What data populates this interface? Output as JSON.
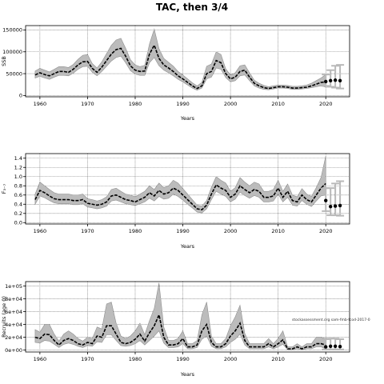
{
  "title": "TAC, then 3/4",
  "watermark": "stockassessment.org  sam-fmb-fcod-2017-0",
  "colors": {
    "band": "#bcbcbc",
    "band_edge": "#8f8f8f",
    "line": "#000000",
    "dotted": "#3a3a3a",
    "forecast": "#b9b9b9",
    "points": "#000000"
  },
  "chart_data": [
    {
      "type": "line",
      "ylabel": "SSB",
      "xlabel": "Years",
      "xlim": [
        1957,
        2025
      ],
      "xticks": [
        1960,
        1970,
        1980,
        1990,
        2000,
        2010,
        2020
      ],
      "ylim": [
        -3000,
        160000
      ],
      "yticks": [
        0,
        50000,
        100000,
        150000
      ],
      "ytick_labels": [
        "0",
        "50000",
        "100000",
        "150000"
      ],
      "grid": true,
      "series": [
        {
          "x": [
            1959,
            1960,
            1961,
            1962,
            1963,
            1964,
            1965,
            1966,
            1967,
            1968,
            1969,
            1970,
            1971,
            1972,
            1973,
            1974,
            1975,
            1976,
            1977,
            1978,
            1979,
            1980,
            1981,
            1982,
            1983,
            1984,
            1985,
            1986,
            1987,
            1988,
            1989,
            1990,
            1991,
            1992,
            1993,
            1994,
            1995,
            1996,
            1997,
            1998,
            1999,
            2000,
            2001,
            2002,
            2003,
            2004,
            2005,
            2006,
            2007,
            2008,
            2009,
            2010,
            2011,
            2012,
            2013,
            2014,
            2015,
            2016,
            2017,
            2018,
            2019,
            2020
          ],
          "estimate": [
            47000,
            52000,
            48000,
            45000,
            50000,
            55000,
            55000,
            53000,
            60000,
            70000,
            77000,
            78000,
            62000,
            53000,
            65000,
            80000,
            95000,
            105000,
            108000,
            90000,
            68000,
            58000,
            55000,
            56000,
            95000,
            115000,
            85000,
            70000,
            63000,
            55000,
            45000,
            38000,
            30000,
            22000,
            16000,
            22000,
            50000,
            55000,
            80000,
            75000,
            50000,
            38000,
            42000,
            55000,
            58000,
            42000,
            28000,
            22000,
            18000,
            16000,
            18000,
            20000,
            20000,
            19000,
            17000,
            17000,
            18000,
            19000,
            22000,
            26000,
            30000,
            31000
          ],
          "lower": [
            40000,
            44000,
            40000,
            37000,
            42000,
            46000,
            46000,
            45000,
            51000,
            60000,
            66000,
            67000,
            53000,
            45000,
            55000,
            67000,
            79000,
            87000,
            90000,
            75000,
            57000,
            49000,
            46000,
            46000,
            75000,
            87000,
            68000,
            58000,
            52000,
            45000,
            37000,
            31000,
            24000,
            17000,
            12000,
            17000,
            38000,
            42000,
            63000,
            60000,
            41000,
            31000,
            34000,
            45000,
            47000,
            34000,
            22000,
            17000,
            14000,
            13000,
            15000,
            17000,
            17000,
            16000,
            14000,
            14000,
            15000,
            16000,
            18000,
            20000,
            22000,
            19000
          ],
          "upper": [
            56000,
            62000,
            58000,
            54000,
            60000,
            66000,
            66000,
            64000,
            71000,
            83000,
            92000,
            94000,
            73000,
            63000,
            77000,
            96000,
            115000,
            127000,
            131000,
            108000,
            82000,
            70000,
            66000,
            69000,
            118000,
            152000,
            107000,
            85000,
            76000,
            67000,
            55000,
            47000,
            38000,
            29000,
            22000,
            30000,
            67000,
            72000,
            100000,
            94000,
            61000,
            47000,
            52000,
            68000,
            70000,
            52000,
            35000,
            28000,
            23000,
            20000,
            22000,
            24000,
            24000,
            23000,
            21000,
            21000,
            22000,
            24000,
            28000,
            34000,
            40000,
            48000
          ]
        }
      ],
      "forecast": {
        "x": [
          2020,
          2021,
          2022,
          2023
        ],
        "median": [
          32000,
          34000,
          35000,
          34000
        ],
        "lower": [
          22000,
          20000,
          18000,
          16000
        ],
        "upper": [
          48000,
          58000,
          68000,
          70000
        ]
      }
    },
    {
      "type": "line",
      "ylabel": "F₃₋₇",
      "xlabel": "Years",
      "xlim": [
        1957,
        2025
      ],
      "xticks": [
        1960,
        1970,
        1980,
        1990,
        2000,
        2010,
        2020
      ],
      "ylim": [
        -0.03,
        1.5
      ],
      "yticks": [
        0.0,
        0.2,
        0.4,
        0.6,
        0.8,
        1.0,
        1.2,
        1.4
      ],
      "ytick_labels": [
        "0.0",
        "0.2",
        "0.4",
        "0.6",
        "0.8",
        "1.0",
        "1.2",
        "1.4"
      ],
      "grid": true,
      "series": [
        {
          "x": [
            1959,
            1960,
            1961,
            1962,
            1963,
            1964,
            1965,
            1966,
            1967,
            1968,
            1969,
            1970,
            1971,
            1972,
            1973,
            1974,
            1975,
            1976,
            1977,
            1978,
            1979,
            1980,
            1981,
            1982,
            1983,
            1984,
            1985,
            1986,
            1987,
            1988,
            1989,
            1990,
            1991,
            1992,
            1993,
            1994,
            1995,
            1996,
            1997,
            1998,
            1999,
            2000,
            2001,
            2002,
            2003,
            2004,
            2005,
            2006,
            2007,
            2008,
            2009,
            2010,
            2011,
            2012,
            2013,
            2014,
            2015,
            2016,
            2017,
            2018,
            2019,
            2020
          ],
          "estimate": [
            0.5,
            0.7,
            0.65,
            0.58,
            0.52,
            0.5,
            0.5,
            0.5,
            0.48,
            0.48,
            0.5,
            0.42,
            0.4,
            0.38,
            0.4,
            0.45,
            0.58,
            0.6,
            0.55,
            0.5,
            0.48,
            0.45,
            0.5,
            0.55,
            0.65,
            0.58,
            0.7,
            0.62,
            0.65,
            0.75,
            0.7,
            0.6,
            0.5,
            0.4,
            0.3,
            0.28,
            0.38,
            0.62,
            0.82,
            0.75,
            0.7,
            0.55,
            0.62,
            0.8,
            0.72,
            0.65,
            0.72,
            0.68,
            0.55,
            0.55,
            0.58,
            0.75,
            0.55,
            0.68,
            0.48,
            0.45,
            0.6,
            0.5,
            0.45,
            0.6,
            0.75,
            0.85
          ],
          "lower": [
            0.4,
            0.58,
            0.54,
            0.48,
            0.43,
            0.41,
            0.41,
            0.41,
            0.39,
            0.39,
            0.41,
            0.34,
            0.32,
            0.3,
            0.32,
            0.36,
            0.47,
            0.49,
            0.45,
            0.41,
            0.39,
            0.37,
            0.41,
            0.45,
            0.53,
            0.47,
            0.57,
            0.51,
            0.53,
            0.62,
            0.57,
            0.49,
            0.4,
            0.32,
            0.23,
            0.21,
            0.3,
            0.5,
            0.68,
            0.62,
            0.57,
            0.45,
            0.51,
            0.66,
            0.59,
            0.53,
            0.59,
            0.55,
            0.45,
            0.45,
            0.47,
            0.62,
            0.45,
            0.55,
            0.38,
            0.36,
            0.48,
            0.4,
            0.35,
            0.47,
            0.58,
            0.6
          ],
          "upper": [
            0.62,
            0.88,
            0.8,
            0.72,
            0.65,
            0.62,
            0.62,
            0.62,
            0.6,
            0.6,
            0.62,
            0.52,
            0.5,
            0.47,
            0.5,
            0.56,
            0.72,
            0.75,
            0.68,
            0.62,
            0.6,
            0.56,
            0.62,
            0.68,
            0.8,
            0.72,
            0.86,
            0.76,
            0.8,
            0.92,
            0.86,
            0.74,
            0.62,
            0.5,
            0.38,
            0.36,
            0.48,
            0.77,
            1.0,
            0.92,
            0.86,
            0.68,
            0.76,
            0.98,
            0.88,
            0.8,
            0.88,
            0.84,
            0.68,
            0.68,
            0.72,
            0.92,
            0.68,
            0.84,
            0.6,
            0.56,
            0.74,
            0.62,
            0.57,
            0.76,
            0.98,
            1.45
          ]
        }
      ],
      "forecast": {
        "x": [
          2020,
          2021,
          2022,
          2023
        ],
        "median": [
          0.48,
          0.35,
          0.36,
          0.37
        ],
        "lower": [
          0.25,
          0.16,
          0.16,
          0.15
        ],
        "upper": [
          0.75,
          0.75,
          0.85,
          0.9
        ]
      }
    },
    {
      "type": "line",
      "ylabel": "Recruits (age 0)",
      "xlabel": "Years",
      "xlim": [
        1957,
        2025
      ],
      "xticks": [
        1960,
        1970,
        1980,
        1990,
        2000,
        2010,
        2020
      ],
      "ylim": [
        -3000,
        107000
      ],
      "yticks": [
        0,
        20000,
        40000,
        60000,
        80000,
        100000
      ],
      "ytick_labels": [
        "0e+00",
        "2e+04",
        "4e+04",
        "6e+04",
        "8e+04",
        "1e+05"
      ],
      "grid": true,
      "series": [
        {
          "x": [
            1959,
            1960,
            1961,
            1962,
            1963,
            1964,
            1965,
            1966,
            1967,
            1968,
            1969,
            1970,
            1971,
            1972,
            1973,
            1974,
            1975,
            1976,
            1977,
            1978,
            1979,
            1980,
            1981,
            1982,
            1983,
            1984,
            1985,
            1986,
            1987,
            1988,
            1989,
            1990,
            1991,
            1992,
            1993,
            1994,
            1995,
            1996,
            1997,
            1998,
            1999,
            2000,
            2001,
            2002,
            2003,
            2004,
            2005,
            2006,
            2007,
            2008,
            2009,
            2010,
            2011,
            2012,
            2013,
            2014,
            2015,
            2016,
            2017,
            2018,
            2019,
            2020
          ],
          "estimate": [
            20000,
            18000,
            25000,
            24000,
            15000,
            8000,
            15000,
            18000,
            15000,
            10000,
            8000,
            12000,
            10000,
            22000,
            20000,
            38000,
            38000,
            25000,
            12000,
            10000,
            12000,
            17000,
            25000,
            14000,
            27000,
            38000,
            55000,
            20000,
            8000,
            8000,
            10000,
            18000,
            5000,
            5000,
            8000,
            30000,
            40000,
            12000,
            5000,
            5000,
            10000,
            22000,
            30000,
            42000,
            15000,
            5000,
            5000,
            5000,
            5000,
            10000,
            5000,
            10000,
            16000,
            2000,
            2000,
            5000,
            2000,
            5000,
            5000,
            10000,
            10000,
            8000
          ],
          "lower": [
            12000,
            11000,
            15000,
            14000,
            9000,
            4000,
            9000,
            11000,
            9000,
            6000,
            4000,
            7000,
            6000,
            13000,
            12000,
            24000,
            24000,
            15000,
            7000,
            6000,
            7000,
            10000,
            15000,
            8000,
            15000,
            22000,
            30000,
            11000,
            4000,
            4000,
            5000,
            10000,
            2000,
            2000,
            4000,
            17000,
            22000,
            6000,
            2000,
            2000,
            5000,
            12000,
            17000,
            25000,
            8000,
            2000,
            2000,
            2000,
            2000,
            5000,
            2000,
            5000,
            9000,
            500,
            500,
            2000,
            500,
            2000,
            2000,
            5000,
            5000,
            2000
          ],
          "upper": [
            32000,
            28000,
            40000,
            40000,
            25000,
            14000,
            25000,
            30000,
            25000,
            18000,
            14000,
            20000,
            18000,
            36000,
            33000,
            72000,
            75000,
            42000,
            22000,
            18000,
            22000,
            30000,
            42000,
            24000,
            46000,
            65000,
            105000,
            36000,
            15000,
            15000,
            18000,
            30000,
            10000,
            10000,
            15000,
            55000,
            75000,
            22000,
            10000,
            10000,
            18000,
            38000,
            52000,
            70000,
            26000,
            10000,
            10000,
            10000,
            10000,
            18000,
            10000,
            18000,
            30000,
            5000,
            5000,
            10000,
            5000,
            10000,
            10000,
            20000,
            20000,
            18000
          ]
        }
      ],
      "forecast": {
        "x": [
          2020,
          2021,
          2022,
          2023
        ],
        "median": [
          5000,
          6000,
          6000,
          5500
        ],
        "lower": [
          1000,
          1000,
          1000,
          1000
        ],
        "upper": [
          17000,
          18000,
          18000,
          17000
        ]
      }
    }
  ]
}
